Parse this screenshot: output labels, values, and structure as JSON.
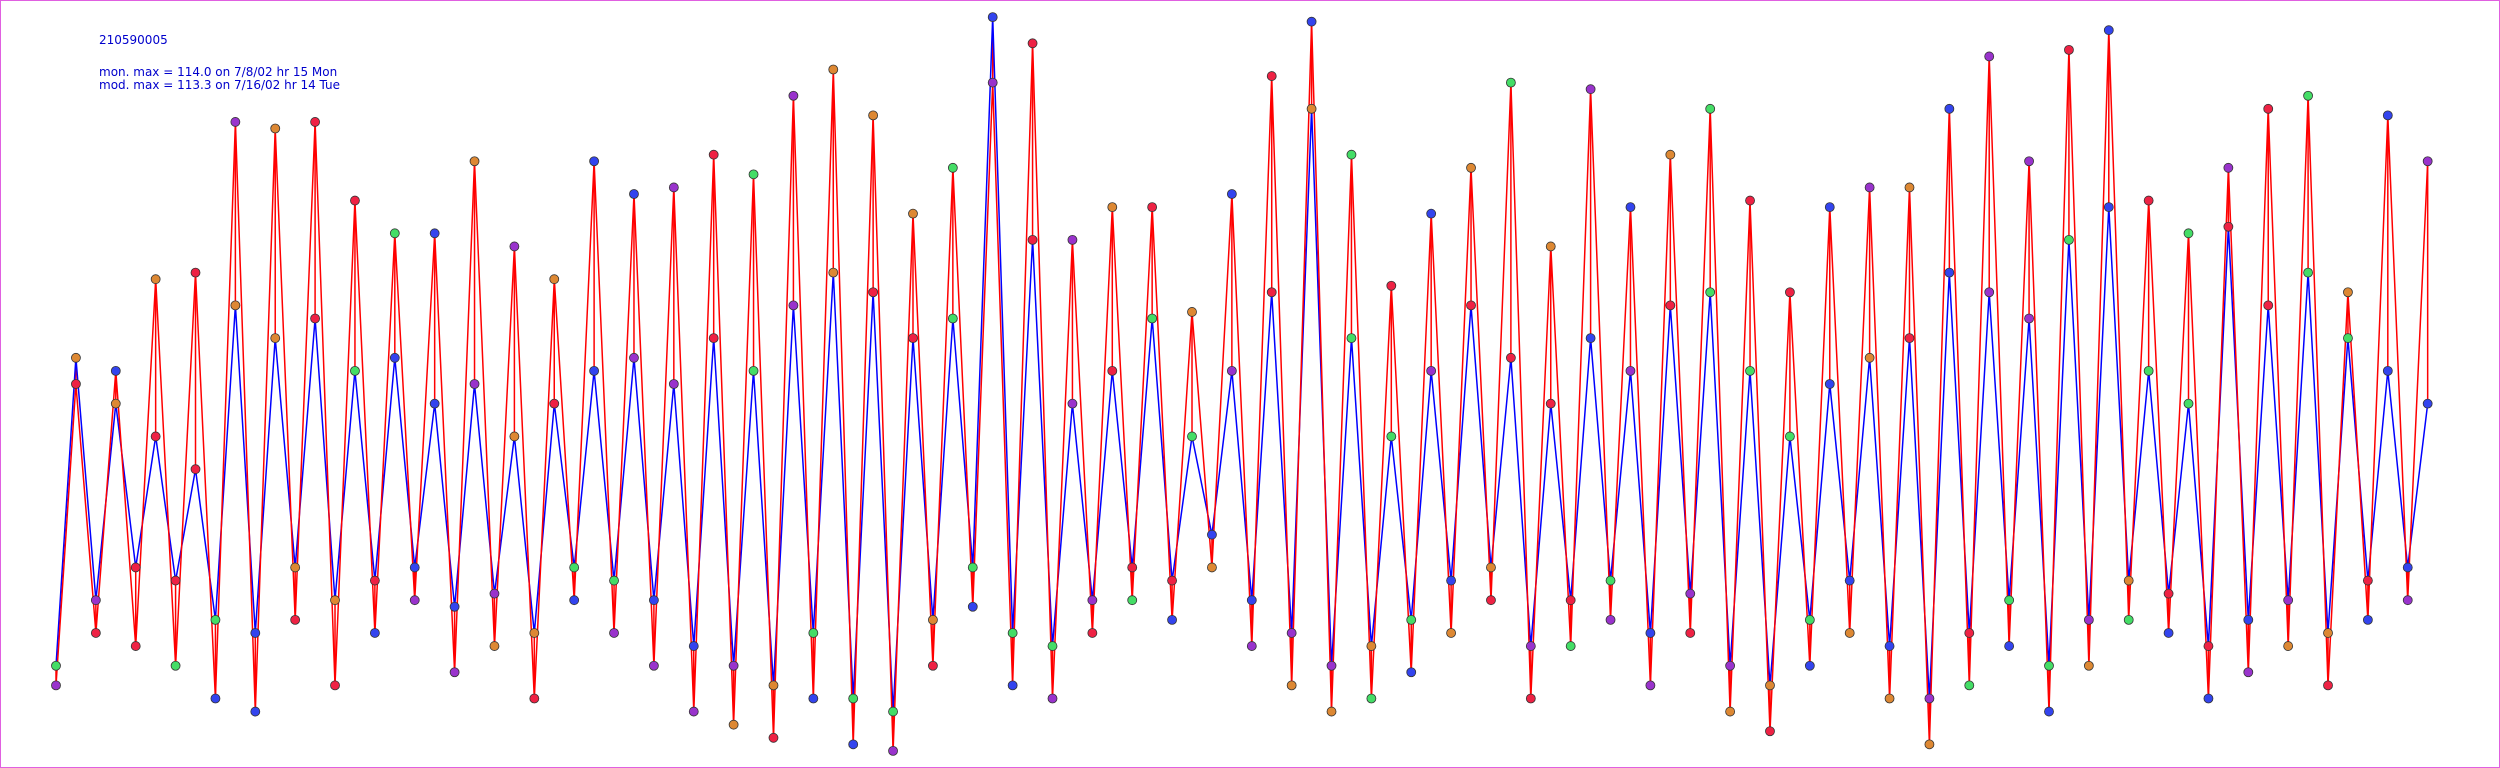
{
  "chart_data": {
    "type": "line",
    "title": "210590005",
    "annotations": [
      "mon. max =  114.0 on 7/8/02 hr 15 Mon",
      "mod. max =  113.3 on 7/16/02 hr 14 Tue"
    ],
    "ylim": [
      0,
      116
    ],
    "series": [
      {
        "color": "#0000ff",
        "values": [
          15,
          62,
          25,
          55,
          30,
          50,
          28,
          45,
          22,
          70,
          20,
          65,
          30,
          68,
          25,
          60,
          28,
          62,
          30,
          55,
          24,
          58,
          26,
          50,
          20,
          55,
          30,
          60,
          28,
          62,
          25,
          58,
          18,
          65,
          15,
          60,
          12,
          70,
          20,
          75,
          10,
          72,
          8,
          65,
          22,
          68,
          30,
          114.0,
          20,
          80,
          18,
          55,
          25,
          60,
          30,
          68,
          28,
          50,
          35,
          60,
          25,
          72,
          20,
          100,
          15,
          65,
          18,
          50,
          22,
          60,
          28,
          70,
          30,
          62,
          18,
          55,
          25,
          65,
          28,
          60,
          20,
          70,
          26,
          72,
          15,
          60,
          12,
          50,
          22,
          58,
          28,
          62,
          18,
          65,
          10,
          75,
          20,
          72,
          25,
          68,
          15,
          80,
          22,
          85,
          28,
          60,
          26,
          55,
          18,
          82,
          22,
          70,
          25,
          75,
          20,
          65,
          28,
          60,
          30,
          55
        ]
      },
      {
        "color": "#ff0000",
        "values": [
          12,
          58,
          20,
          60,
          18,
          74,
          15,
          75,
          10,
          98,
          8,
          97,
          22,
          98,
          12,
          86,
          20,
          81,
          25,
          81,
          14,
          92,
          18,
          79,
          10,
          74,
          25,
          92,
          20,
          87,
          15,
          88,
          8,
          93,
          6,
          90,
          4,
          102,
          10,
          106,
          3,
          99,
          2,
          84,
          15,
          91,
          24,
          104,
          12,
          110,
          10,
          80,
          20,
          85,
          25,
          85,
          22,
          69,
          30,
          87,
          18,
          105,
          12,
          113.3,
          8,
          93,
          10,
          73,
          14,
          84,
          20,
          91,
          25,
          104,
          10,
          79,
          18,
          103,
          22,
          85,
          12,
          93,
          20,
          100,
          8,
          86,
          5,
          72,
          15,
          85,
          20,
          88,
          10,
          88,
          3,
          100,
          12,
          108,
          18,
          92,
          8,
          109,
          15,
          112,
          22,
          86,
          20,
          81,
          10,
          91,
          14,
          100,
          18,
          102,
          12,
          72,
          22,
          99,
          25,
          92
        ]
      }
    ]
  }
}
